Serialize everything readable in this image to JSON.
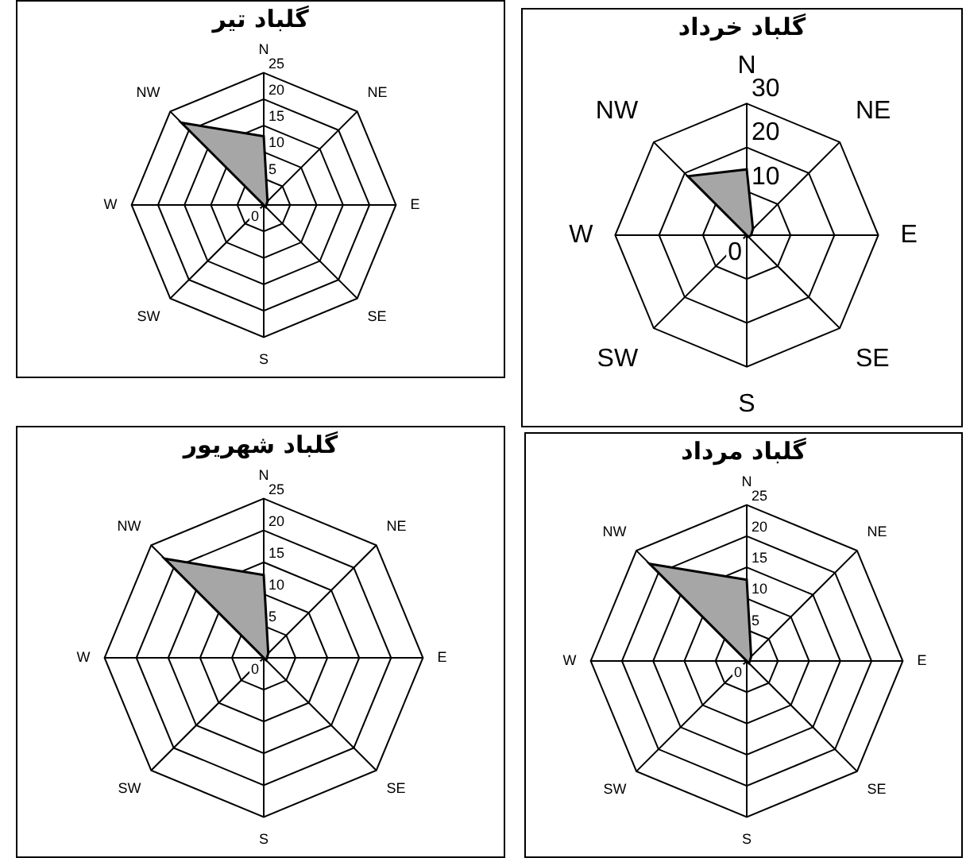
{
  "chart_data": [
    {
      "type": "radar",
      "title": "گلباد تیر",
      "categories": [
        "N",
        "NE",
        "E",
        "SE",
        "S",
        "SW",
        "W",
        "NW"
      ],
      "series": [
        {
          "color": "#a6a6a6",
          "values": [
            13,
            1,
            0.5,
            0.5,
            0,
            0,
            0,
            22
          ]
        }
      ],
      "ylim": [
        0,
        25
      ],
      "yticks": [
        0,
        5,
        10,
        15,
        20,
        25
      ],
      "grid": true,
      "legend": false
    },
    {
      "type": "radar",
      "title": "گلباد خرداد",
      "categories": [
        "N",
        "NE",
        "E",
        "SE",
        "S",
        "SW",
        "W",
        "NW"
      ],
      "series": [
        {
          "color": "#a6a6a6",
          "values": [
            15,
            2,
            1,
            0.5,
            0,
            0,
            0,
            19
          ]
        }
      ],
      "ylim": [
        0,
        30
      ],
      "yticks": [
        0,
        10,
        20,
        30
      ],
      "grid": true,
      "legend": false
    },
    {
      "type": "radar",
      "title": "گلباد شهریور",
      "categories": [
        "N",
        "NE",
        "E",
        "SE",
        "S",
        "SW",
        "W",
        "NW"
      ],
      "series": [
        {
          "color": "#a6a6a6",
          "values": [
            13,
            1,
            0.5,
            0.5,
            0,
            0,
            0,
            22
          ]
        }
      ],
      "ylim": [
        0,
        25
      ],
      "yticks": [
        0,
        5,
        10,
        15,
        20,
        25
      ],
      "grid": true,
      "legend": false
    },
    {
      "type": "radar",
      "title": "گلباد مرداد",
      "categories": [
        "N",
        "NE",
        "E",
        "SE",
        "S",
        "SW",
        "W",
        "NW"
      ],
      "series": [
        {
          "color": "#a6a6a6",
          "values": [
            13,
            1,
            0.5,
            0.5,
            0,
            0,
            0,
            22
          ]
        }
      ],
      "ylim": [
        0,
        25
      ],
      "yticks": [
        0,
        5,
        10,
        15,
        20,
        25
      ],
      "grid": true,
      "legend": false
    }
  ]
}
